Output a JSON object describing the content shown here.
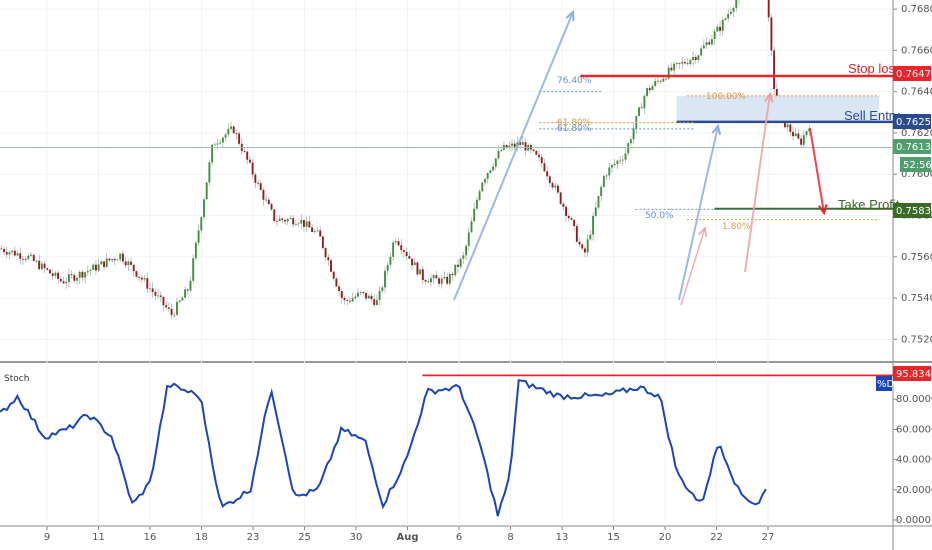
{
  "colors": {
    "up": "#3f8f3f",
    "down": "#8e1f1f",
    "stoch": "#1c46b8",
    "stop": "#e8252a",
    "entry": "#2c4b8f",
    "entry_zone": "#dbe6f5",
    "profit": "#3a6b27",
    "fib_blue": "#6a8fd0",
    "fib_orange": "#d99a4a",
    "grid": "#f0f3f8",
    "axis_text": "#555555",
    "price_line": "#8fc2a0"
  },
  "chart_data": [
    {
      "type": "candlestick",
      "yaxis": {
        "ticks": [
          "0.76800",
          "0.76600",
          "0.76400",
          "0.76200",
          "0.76000",
          "0.75800",
          "0.75600",
          "0.75400",
          "0.75200"
        ],
        "range": [
          0.751,
          0.7682
        ]
      },
      "xaxis": {
        "ticks": [
          "9",
          "11",
          "16",
          "18",
          "23",
          "25",
          "30",
          "Aug",
          "6",
          "8",
          "13",
          "15",
          "20",
          "22",
          "27"
        ],
        "range": [
          0,
          26
        ]
      },
      "anchors": [
        [
          0.0,
          0.7564
        ],
        [
          0.8,
          0.756
        ],
        [
          1.8,
          0.7548
        ],
        [
          2.8,
          0.7555
        ],
        [
          3.5,
          0.7561
        ],
        [
          4.2,
          0.7548
        ],
        [
          5.0,
          0.7532
        ],
        [
          5.5,
          0.7545
        ],
        [
          6.2,
          0.7615
        ],
        [
          6.8,
          0.7622
        ],
        [
          7.5,
          0.7595
        ],
        [
          8.0,
          0.7578
        ],
        [
          8.7,
          0.7578
        ],
        [
          9.3,
          0.757
        ],
        [
          10.0,
          0.7538
        ],
        [
          10.5,
          0.7542
        ],
        [
          11.0,
          0.7538
        ],
        [
          11.5,
          0.757
        ],
        [
          12.3,
          0.755
        ],
        [
          13.0,
          0.7548
        ],
        [
          13.5,
          0.756
        ],
        [
          14.0,
          0.7596
        ],
        [
          14.6,
          0.7612
        ],
        [
          15.2,
          0.7615
        ],
        [
          15.8,
          0.7605
        ],
        [
          16.6,
          0.7578
        ],
        [
          17.0,
          0.756
        ],
        [
          17.6,
          0.76
        ],
        [
          18.2,
          0.761
        ],
        [
          18.8,
          0.764
        ],
        [
          19.5,
          0.765
        ],
        [
          20.3,
          0.7658
        ],
        [
          21.0,
          0.7672
        ],
        [
          21.8,
          0.7696
        ],
        [
          22.3,
          0.769
        ],
        [
          22.6,
          0.763
        ],
        [
          23.3,
          0.7615
        ],
        [
          24.0,
          0.764
        ],
        [
          24.6,
          0.7605
        ],
        [
          25.3,
          0.759
        ],
        [
          26.0,
          0.7555
        ]
      ],
      "levels": {
        "stop_loss": {
          "label": "Stop loss",
          "value": "0.76476",
          "price": 0.76476
        },
        "sell_entry": {
          "label": "Sell Entry",
          "value": "0.76254",
          "price": 0.76254
        },
        "take_profit": {
          "label": "Take Profit",
          "value": "0.75833",
          "price": 0.75833
        },
        "last_price": {
          "value": "0.76130",
          "price": 0.7613
        },
        "countdown": "52:56"
      },
      "fib_labels": [
        "76.40%",
        "61.80%",
        "61.80%",
        "100.00%",
        "50.0%",
        "1.80%"
      ]
    },
    {
      "type": "line",
      "name": "Stoch",
      "yaxis": {
        "ticks": [
          "80.0000",
          "60.0000",
          "40.0000",
          "20.0000",
          "0.0000"
        ],
        "range": [
          0,
          100
        ]
      },
      "series": [
        {
          "name": "%D"
        }
      ],
      "current": "95.8345",
      "anchors": [
        [
          0.0,
          70
        ],
        [
          0.6,
          82
        ],
        [
          1.5,
          55
        ],
        [
          2.3,
          60
        ],
        [
          3.0,
          70
        ],
        [
          3.8,
          55
        ],
        [
          4.5,
          10
        ],
        [
          5.1,
          25
        ],
        [
          5.7,
          90
        ],
        [
          6.8,
          82
        ],
        [
          7.5,
          8
        ],
        [
          8.5,
          20
        ],
        [
          9.2,
          88
        ],
        [
          10.0,
          15
        ],
        [
          10.8,
          20
        ],
        [
          11.6,
          60
        ],
        [
          12.4,
          52
        ],
        [
          13.0,
          10
        ],
        [
          13.8,
          40
        ],
        [
          14.5,
          85
        ],
        [
          15.6,
          88
        ],
        [
          16.3,
          50
        ],
        [
          16.9,
          3
        ],
        [
          17.3,
          28
        ],
        [
          17.6,
          92
        ],
        [
          19.0,
          82
        ],
        [
          20.5,
          82
        ],
        [
          21.7,
          88
        ],
        [
          22.4,
          82
        ],
        [
          23.0,
          30
        ],
        [
          23.8,
          10
        ],
        [
          24.4,
          52
        ],
        [
          25.1,
          18
        ],
        [
          25.7,
          10
        ],
        [
          26.0,
          20
        ]
      ]
    }
  ]
}
